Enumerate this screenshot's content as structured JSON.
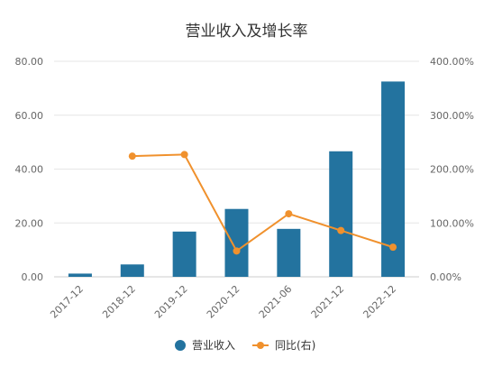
{
  "chart_data": {
    "type": "bar",
    "title": "营业收入及增长率",
    "categories": [
      "2017-12",
      "2018-12",
      "2019-12",
      "2020-12",
      "2021-06",
      "2021-12",
      "2022-12"
    ],
    "series": [
      {
        "name": "营业收入",
        "type": "bar",
        "axis": "left",
        "color": "#23739f",
        "values": [
          1.2,
          4.6,
          16.8,
          25.2,
          17.8,
          46.6,
          72.5
        ]
      },
      {
        "name": "同比(右)",
        "type": "line",
        "axis": "right",
        "color": "#f0912d",
        "values": [
          null,
          224,
          227,
          48,
          117,
          86,
          55
        ]
      }
    ],
    "y_left": {
      "ylim": [
        0,
        80
      ],
      "ticks": [
        "0.00",
        "20.00",
        "40.00",
        "60.00",
        "80.00"
      ]
    },
    "y_right": {
      "ylim": [
        0,
        400
      ],
      "ticks": [
        "0.00%",
        "100.00%",
        "200.00%",
        "300.00%",
        "400.00%"
      ]
    },
    "grid": true,
    "legend_position": "bottom-center"
  }
}
